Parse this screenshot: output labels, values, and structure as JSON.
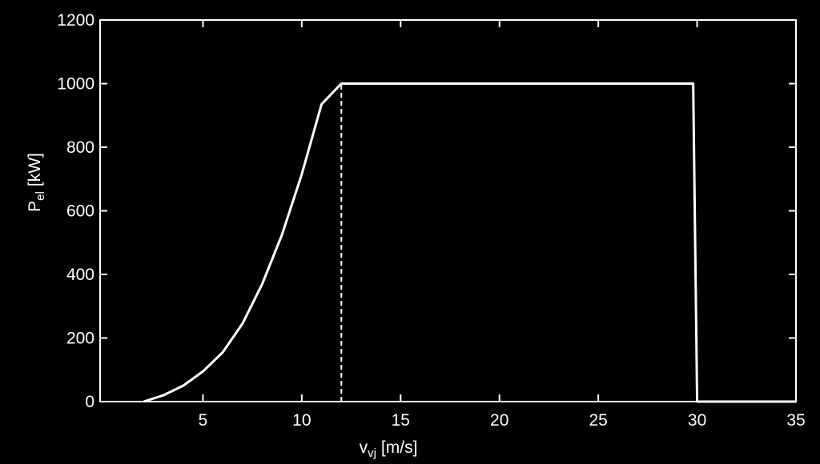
{
  "chart_data": {
    "type": "line",
    "x": [
      2,
      3,
      4,
      5,
      6,
      7,
      8,
      9,
      10,
      11,
      12,
      29.8,
      30,
      35
    ],
    "series": [
      {
        "color": "#ffffff",
        "values": [
          0,
          20,
          50,
          95,
          155,
          245,
          370,
          525,
          715,
          935,
          1000,
          1000,
          0,
          0
        ]
      }
    ],
    "xlim": [
      0,
      35
    ],
    "xticks": [
      5,
      10,
      15,
      20,
      25,
      30,
      35
    ],
    "ylim": [
      0,
      1200
    ],
    "yticks": [
      0,
      200,
      400,
      600,
      800,
      1000,
      1200
    ],
    "dashed_line": {
      "x": 12,
      "y_top": 1000
    },
    "xlabel": {
      "main": "v",
      "sub": "vj",
      "unit": "[m/s]"
    },
    "ylabel": {
      "main": "P",
      "sub": "el",
      "unit": "[kW]"
    },
    "background": "#000000",
    "axis_color": "#ffffff"
  }
}
